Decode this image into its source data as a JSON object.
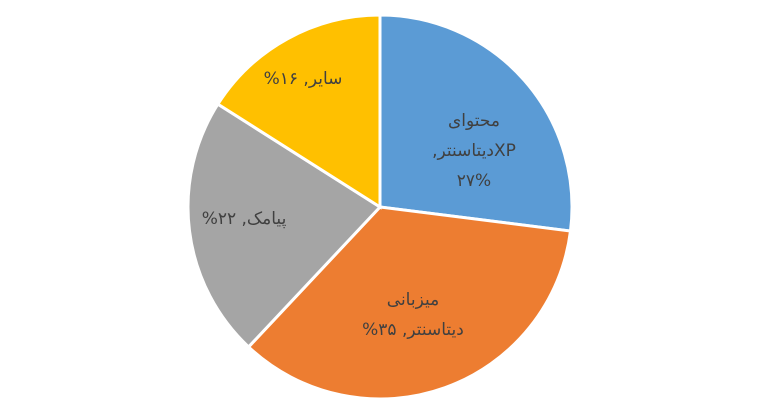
{
  "chart_data": {
    "type": "pie",
    "start_angle_deg": 0,
    "direction": "clockwise",
    "slices": [
      {
        "label_lines": [
          "محتوای",
          "XPدیتاسنتر,",
          "۲۷%"
        ],
        "value": 27,
        "color": "#5B9BD5"
      },
      {
        "label_lines": [
          "میزبانی",
          "دیتاسنتر, ۳۵%"
        ],
        "value": 35,
        "color": "#ED7D31"
      },
      {
        "label_lines": [
          "پیامک, ۲۲%"
        ],
        "value": 22,
        "color": "#A5A5A5"
      },
      {
        "label_lines": [
          "سایر, ۱۶%"
        ],
        "value": 16,
        "color": "#FFC000"
      }
    ]
  }
}
